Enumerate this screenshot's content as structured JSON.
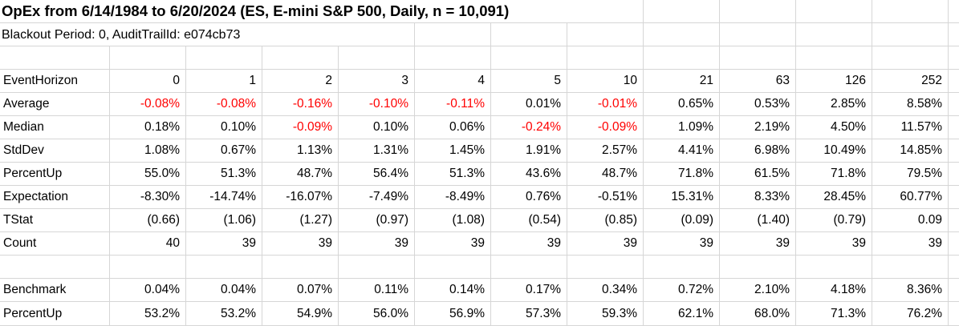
{
  "sheet": {
    "title": "OpEx from 6/14/1984 to 6/20/2024 (ES, E-mini S&P 500, Daily, n = 10,091)",
    "subtitle": "Blackout Period: 0, AuditTrailId: e074cb73",
    "event_horizon_label": "EventHorizon",
    "event_horizons": [
      "0",
      "1",
      "2",
      "3",
      "4",
      "5",
      "10",
      "21",
      "63",
      "126",
      "252"
    ],
    "stat_rows": [
      {
        "label": "Average",
        "values": [
          "-0.08%",
          "-0.08%",
          "-0.16%",
          "-0.10%",
          "-0.11%",
          "0.01%",
          "-0.01%",
          "0.65%",
          "0.53%",
          "2.85%",
          "8.58%"
        ],
        "red_indices": [
          0,
          1,
          2,
          3,
          4,
          6
        ]
      },
      {
        "label": "Median",
        "values": [
          "0.18%",
          "0.10%",
          "-0.09%",
          "0.10%",
          "0.06%",
          "-0.24%",
          "-0.09%",
          "1.09%",
          "2.19%",
          "4.50%",
          "11.57%"
        ],
        "red_indices": [
          2,
          5,
          6
        ]
      },
      {
        "label": "StdDev",
        "values": [
          "1.08%",
          "0.67%",
          "1.13%",
          "1.31%",
          "1.45%",
          "1.91%",
          "2.57%",
          "4.41%",
          "6.98%",
          "10.49%",
          "14.85%"
        ],
        "red_indices": []
      },
      {
        "label": "PercentUp",
        "values": [
          "55.0%",
          "51.3%",
          "48.7%",
          "56.4%",
          "51.3%",
          "43.6%",
          "48.7%",
          "71.8%",
          "61.5%",
          "71.8%",
          "79.5%"
        ],
        "red_indices": []
      },
      {
        "label": "Expectation",
        "values": [
          "-8.30%",
          "-14.74%",
          "-16.07%",
          "-7.49%",
          "-8.49%",
          "0.76%",
          "-0.51%",
          "15.31%",
          "8.33%",
          "28.45%",
          "60.77%"
        ],
        "red_indices": []
      },
      {
        "label": "TStat",
        "values": [
          "(0.66)",
          "(1.06)",
          "(1.27)",
          "(0.97)",
          "(1.08)",
          "(0.54)",
          "(0.85)",
          "(0.09)",
          "(1.40)",
          "(0.79)",
          "0.09"
        ],
        "red_indices": []
      },
      {
        "label": "Count",
        "values": [
          "40",
          "39",
          "39",
          "39",
          "39",
          "39",
          "39",
          "39",
          "39",
          "39",
          "39"
        ],
        "red_indices": []
      }
    ],
    "benchmark_rows": [
      {
        "label": "Benchmark",
        "values": [
          "0.04%",
          "0.04%",
          "0.07%",
          "0.11%",
          "0.14%",
          "0.17%",
          "0.34%",
          "0.72%",
          "2.10%",
          "4.18%",
          "8.36%"
        ]
      },
      {
        "label": "PercentUp",
        "values": [
          "53.2%",
          "53.2%",
          "54.9%",
          "56.0%",
          "56.9%",
          "57.3%",
          "59.3%",
          "62.1%",
          "68.0%",
          "71.3%",
          "76.2%"
        ]
      }
    ]
  },
  "colors": {
    "negative_red": "#ff0000",
    "gridline": "#d6d6d6",
    "text": "#000000",
    "background": "#ffffff"
  }
}
